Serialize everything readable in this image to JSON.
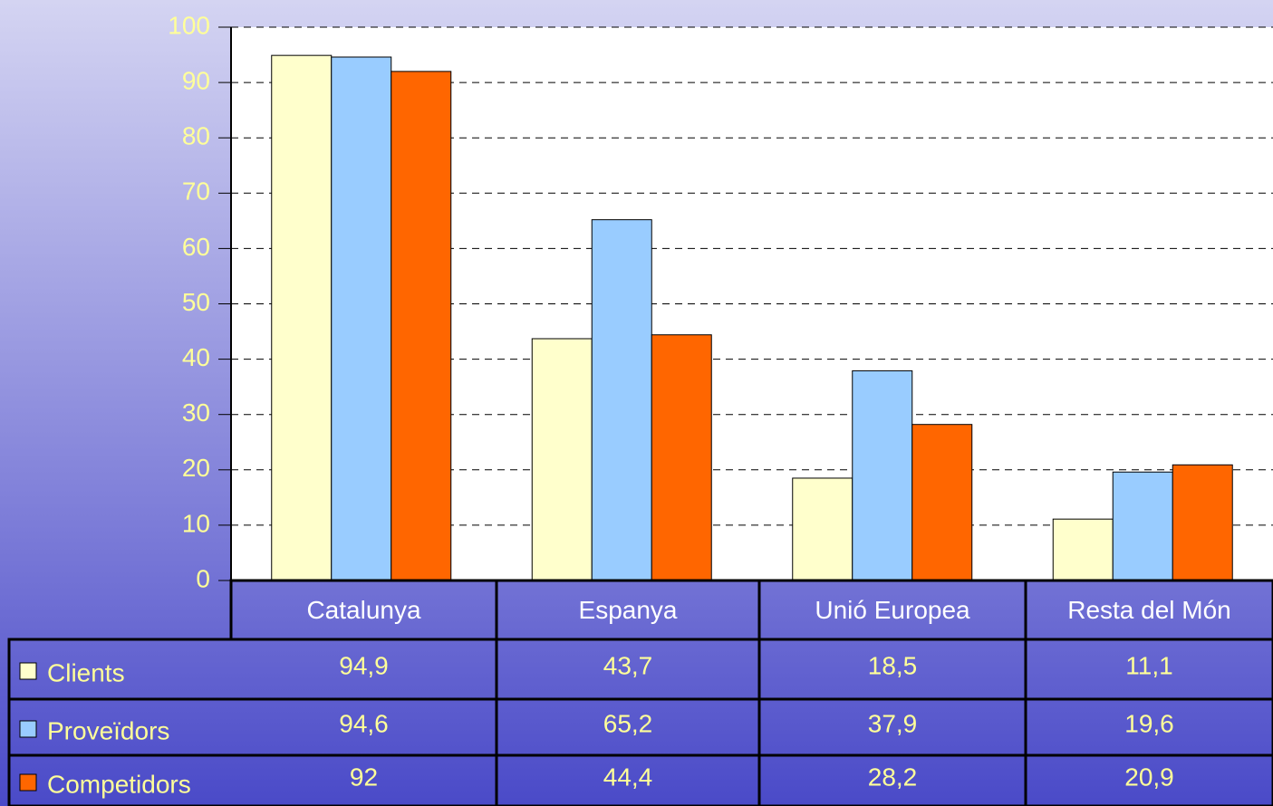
{
  "chart_data": {
    "type": "bar",
    "categories": [
      "Catalunya",
      "Espanya",
      "Unió Europea",
      "Resta del Món"
    ],
    "series": [
      {
        "name": "Clients",
        "color": "#ffffcc",
        "values": [
          94.9,
          43.7,
          18.5,
          11.1
        ],
        "value_labels": [
          "94,9",
          "43,7",
          "18,5",
          "11,1"
        ]
      },
      {
        "name": "Proveïdors",
        "color": "#99ccff",
        "values": [
          94.6,
          65.2,
          37.9,
          19.6
        ],
        "value_labels": [
          "94,6",
          "65,2",
          "37,9",
          "19,6"
        ]
      },
      {
        "name": "Competidors",
        "color": "#ff6600",
        "values": [
          92,
          44.4,
          28.2,
          20.9
        ],
        "value_labels": [
          "92",
          "44,4",
          "28,2",
          "20,9"
        ]
      }
    ],
    "ylim": [
      0,
      100
    ],
    "yticks": [
      0,
      10,
      20,
      30,
      40,
      50,
      60,
      70,
      80,
      90,
      100
    ],
    "grid": true
  }
}
